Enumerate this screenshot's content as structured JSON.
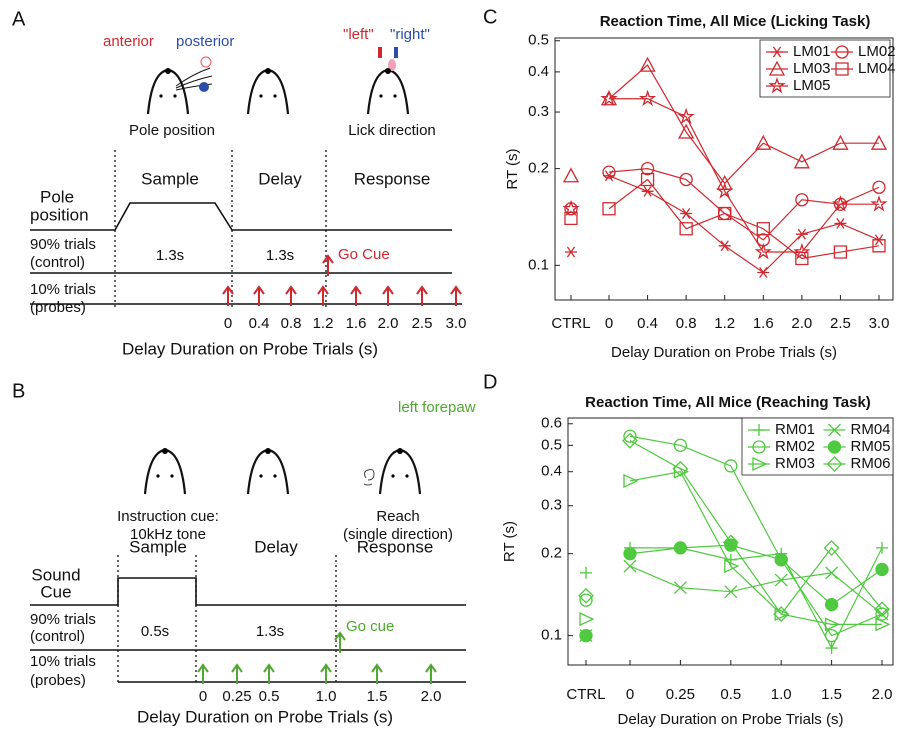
{
  "panel_a": {
    "label": "A",
    "anterior": "anterior",
    "posterior": "posterior",
    "left": "\"left\"",
    "right": "\"right\"",
    "caption_pole": "Pole position",
    "caption_lick": "Lick direction",
    "epochs": [
      "Sample",
      "Delay",
      "Response"
    ],
    "row_pole": [
      "Pole",
      "position"
    ],
    "row_control": [
      "90% trials",
      "(control)"
    ],
    "row_probes": [
      "10% trials",
      "(probes)"
    ],
    "durations": [
      "1.3s",
      "1.3s"
    ],
    "go_cue": "Go Cue",
    "probe_delays": [
      "0",
      "0.4",
      "0.8",
      "1.2",
      "1.6",
      "2.0",
      "2.5",
      "3.0"
    ],
    "x_title": "Delay Duration on Probe Trials (s)"
  },
  "panel_b": {
    "label": "B",
    "forepaw": "left forepaw",
    "caption_cue": [
      "Instruction cue:",
      "10kHz tone"
    ],
    "caption_reach": [
      "Reach",
      "(single direction)"
    ],
    "epochs": [
      "Sample",
      "Delay",
      "Response"
    ],
    "row_sound": [
      "Sound",
      "Cue"
    ],
    "row_control": [
      "90% trials",
      "(control)"
    ],
    "row_probes": [
      "10% trials",
      "(probes)"
    ],
    "durations": [
      "0.5s",
      "1.3s"
    ],
    "go_cue": "Go cue",
    "probe_delays": [
      "0",
      "0.25",
      "0.5",
      "1.0",
      "1.5",
      "2.0"
    ],
    "x_title": "Delay Duration on Probe Trials (s)"
  },
  "chart_data": [
    {
      "type": "line",
      "panel": "C",
      "title": "Reaction Time, All Mice (Licking Task)",
      "x_label": "Delay Duration on Probe Trials (s)",
      "y_label": "RT (s)",
      "categories": [
        "CTRL",
        "0",
        "0.4",
        "0.8",
        "1.2",
        "1.6",
        "2.0",
        "2.5",
        "3.0"
      ],
      "log_scale": true,
      "ylim": [
        0.078,
        0.51
      ],
      "yticks": [
        0.1,
        0.2,
        0.3,
        0.4,
        0.5
      ],
      "legend": "upper right",
      "series": [
        {
          "name": "LM01",
          "color": "#d0282e",
          "marker": "asterisk",
          "values": [
            0.11,
            0.19,
            0.17,
            0.145,
            0.115,
            0.095,
            0.125,
            0.135,
            0.12
          ]
        },
        {
          "name": "LM02",
          "color": "#d0282e",
          "marker": "circle",
          "values": [
            0.15,
            0.195,
            0.2,
            0.185,
            0.145,
            0.12,
            0.16,
            0.155,
            0.175
          ]
        },
        {
          "name": "LM03",
          "color": "#d0282e",
          "marker": "triangle",
          "values": [
            0.19,
            0.33,
            0.42,
            0.26,
            0.18,
            0.24,
            0.21,
            0.24,
            0.24
          ]
        },
        {
          "name": "LM04",
          "color": "#d0282e",
          "marker": "square",
          "values": [
            0.14,
            0.15,
            0.185,
            0.13,
            0.145,
            0.13,
            0.105,
            0.11,
            0.115
          ]
        },
        {
          "name": "LM05",
          "color": "#d0282e",
          "marker": "star",
          "values": [
            0.15,
            0.33,
            0.33,
            0.29,
            0.17,
            0.11,
            0.11,
            0.155,
            0.155
          ]
        }
      ]
    },
    {
      "type": "line",
      "panel": "D",
      "title": "Reaction Time, All Mice (Reaching Task)",
      "x_label": "Delay Duration on Probe Trials (s)",
      "y_label": "RT (s)",
      "categories": [
        "CTRL",
        "0",
        "0.25",
        "0.5",
        "1.0",
        "1.5",
        "2.0"
      ],
      "log_scale": true,
      "ylim": [
        0.078,
        0.63
      ],
      "yticks": [
        0.1,
        0.2,
        0.3,
        0.4,
        0.5,
        0.6
      ],
      "legend": "upper right",
      "series": [
        {
          "name": "RM01",
          "color": "#4fc93f",
          "marker": "plus",
          "values": [
            0.17,
            0.21,
            0.21,
            0.19,
            0.2,
            0.09,
            0.21
          ]
        },
        {
          "name": "RM02",
          "color": "#4fc93f",
          "marker": "circle",
          "values": [
            0.135,
            0.54,
            0.5,
            0.42,
            0.19,
            0.1,
            0.12
          ]
        },
        {
          "name": "RM03",
          "color": "#4fc93f",
          "marker": "triangle-right",
          "values": [
            0.115,
            0.37,
            0.4,
            0.18,
            0.12,
            0.11,
            0.11
          ]
        },
        {
          "name": "RM04",
          "color": "#4fc93f",
          "marker": "x",
          "values": [
            0.1,
            0.18,
            0.15,
            0.145,
            0.16,
            0.17,
            0.12
          ]
        },
        {
          "name": "RM05",
          "color": "#4fc93f",
          "marker": "filled-circle",
          "values": [
            0.1,
            0.2,
            0.21,
            0.215,
            0.19,
            0.13,
            0.175
          ]
        },
        {
          "name": "RM06",
          "color": "#4fc93f",
          "marker": "diamond",
          "values": [
            0.14,
            0.52,
            0.41,
            0.22,
            0.12,
            0.21,
            0.125
          ]
        }
      ]
    }
  ]
}
